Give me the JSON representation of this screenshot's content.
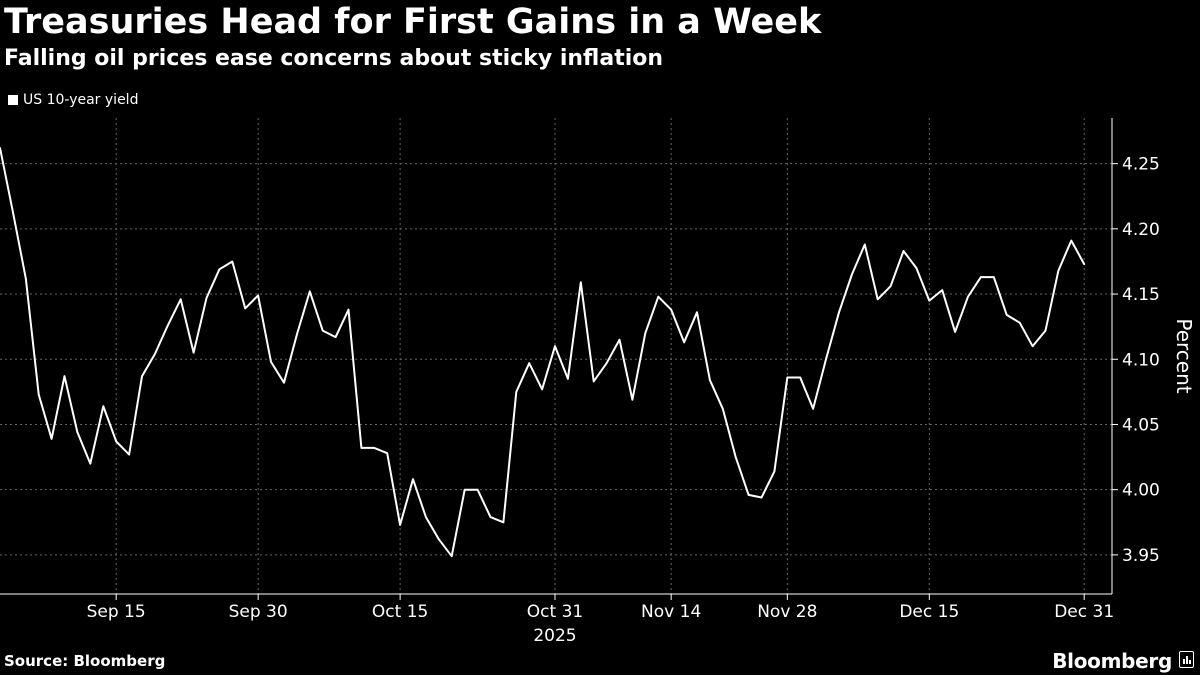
{
  "title": "Treasuries Head for First Gains in a Week",
  "subtitle": "Falling oil prices ease concerns about sticky inflation",
  "source": "Source: Bloomberg",
  "brand": "Bloomberg",
  "brand_icon": "bloomberg-terminal-icon",
  "colors": {
    "background": "#000000",
    "line": "#ffffff",
    "grid": "#666666"
  },
  "chart_data": {
    "type": "line",
    "title": "Treasuries Head for First Gains in a Week",
    "subtitle": "Falling oil prices ease concerns about sticky inflation",
    "xlabel": "",
    "ylabel": "Percent",
    "ylim": [
      3.92,
      4.285
    ],
    "yticks": [
      3.95,
      4.0,
      4.05,
      4.1,
      4.15,
      4.2,
      4.25
    ],
    "ytick_labels": [
      "3.95",
      "4.00",
      "4.05",
      "4.10",
      "4.15",
      "4.20",
      "4.25"
    ],
    "xlim": [
      0,
      86
    ],
    "xticks": [
      {
        "label": "Sep 15",
        "index": 9
      },
      {
        "label": "Sep 30",
        "index": 20
      },
      {
        "label": "Oct 15",
        "index": 31
      },
      {
        "label": "Oct 31",
        "index": 43
      },
      {
        "label": "Nov 14",
        "index": 52
      },
      {
        "label": "Nov 28",
        "index": 61
      },
      {
        "label": "Dec 15",
        "index": 72
      },
      {
        "label": "Dec 31",
        "index": 84
      }
    ],
    "year_label": "2025",
    "year_label_index": 43,
    "grid": true,
    "legend_position": "top-left",
    "series": [
      {
        "name": "US 10-year yield",
        "values": [
          4.262,
          4.213,
          4.162,
          4.073,
          4.039,
          4.087,
          4.044,
          4.02,
          4.064,
          4.037,
          4.027,
          4.087,
          4.104,
          4.126,
          4.146,
          4.105,
          4.147,
          4.169,
          4.175,
          4.139,
          4.149,
          4.098,
          4.082,
          4.119,
          4.152,
          4.122,
          4.117,
          4.138,
          4.032,
          4.032,
          4.028,
          3.973,
          4.008,
          3.979,
          3.962,
          3.949,
          4.0,
          4.0,
          3.979,
          3.975,
          4.075,
          4.097,
          4.077,
          4.11,
          4.085,
          4.159,
          4.083,
          4.097,
          4.115,
          4.069,
          4.12,
          4.148,
          4.138,
          4.113,
          4.136,
          4.084,
          4.062,
          4.025,
          3.996,
          3.994,
          4.014,
          4.086,
          4.086,
          4.062,
          4.1,
          4.136,
          4.165,
          4.188,
          4.146,
          4.156,
          4.183,
          4.17,
          4.145,
          4.153,
          4.121,
          4.148,
          4.163,
          4.163,
          4.134,
          4.128,
          4.11,
          4.122,
          4.168,
          4.191,
          4.173
        ]
      }
    ]
  }
}
